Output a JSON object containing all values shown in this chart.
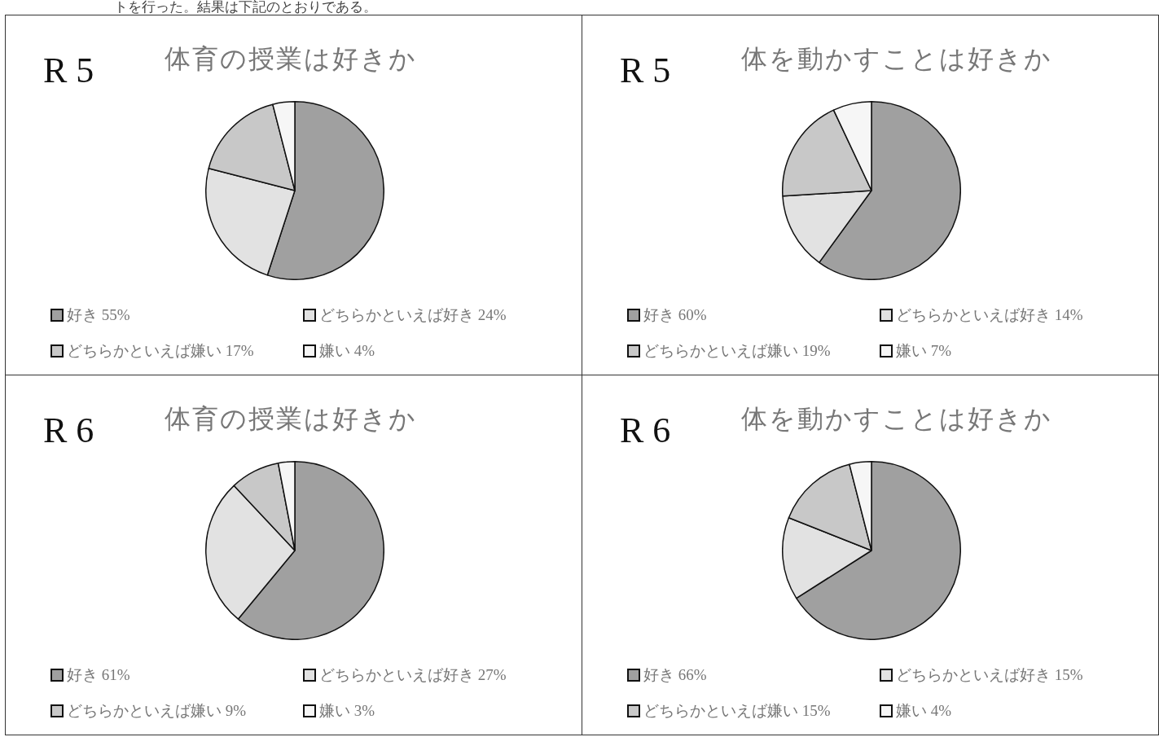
{
  "chart_data": [
    {
      "type": "pie",
      "title": "R 5",
      "subtitle": "体育の授業は好きか",
      "annotations": [
        "トを行った。結果は下記のとおりである。"
      ],
      "legend": "bottom",
      "categories": [
        "好き 55%",
        "どちらかといえば好き 24%",
        "どちらかといえば嫌い 17%",
        "嫌い 4%"
      ],
      "values": [
        55,
        24,
        17,
        4
      ],
      "colors": [
        "#a0a0a0",
        "#e2e2e2",
        "#c8c8c8",
        "#f6f6f6"
      ]
    },
    {
      "type": "pie",
      "title": "R 5",
      "subtitle": "体を動かすことは好きか",
      "legend": "bottom",
      "categories": [
        "好き 60%",
        "どちらかといえば好き 14%",
        "どちらかといえば嫌い 19%",
        "嫌い 7%"
      ],
      "values": [
        60,
        14,
        19,
        7
      ],
      "colors": [
        "#a0a0a0",
        "#e2e2e2",
        "#c8c8c8",
        "#f6f6f6"
      ]
    },
    {
      "type": "pie",
      "title": "R 6",
      "subtitle": "体育の授業は好きか",
      "legend": "bottom",
      "categories": [
        "好き 61%",
        "どちらかといえば好き 27%",
        "どちらかといえば嫌い 9%",
        "嫌い 3%"
      ],
      "values": [
        61,
        27,
        9,
        3
      ],
      "colors": [
        "#a0a0a0",
        "#e2e2e2",
        "#c8c8c8",
        "#f6f6f6"
      ]
    },
    {
      "type": "pie",
      "title": "R 6",
      "subtitle": "体を動かすことは好きか",
      "legend": "bottom",
      "categories": [
        "好き 66%",
        "どちらかといえば好き 15%",
        "どちらかといえば嫌い 15%",
        "嫌い 4%"
      ],
      "values": [
        66,
        15,
        15,
        4
      ],
      "colors": [
        "#a0a0a0",
        "#e2e2e2",
        "#c8c8c8",
        "#f6f6f6"
      ]
    }
  ]
}
